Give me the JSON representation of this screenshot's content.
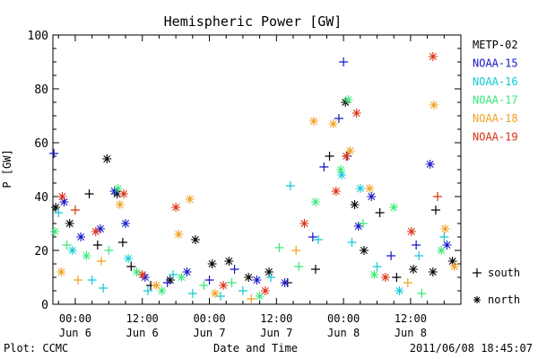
{
  "chart_data": {
    "type": "scatter",
    "title": "Hemispheric Power [GW]",
    "ylabel": "P [GW]",
    "xlabel": "Date and Time",
    "ylim": [
      0,
      100
    ],
    "yticks": [
      0,
      20,
      40,
      60,
      80,
      100
    ],
    "xlim": [
      "2011-06-05 20:00",
      "2011-06-08 21:00"
    ],
    "xticks": [
      {
        "t": "2011-06-06 00:00",
        "label_time": "00:00",
        "label_date": "Jun 6"
      },
      {
        "t": "2011-06-06 12:00",
        "label_time": "12:00",
        "label_date": "Jun 6"
      },
      {
        "t": "2011-06-07 00:00",
        "label_time": "00:00",
        "label_date": "Jun 7"
      },
      {
        "t": "2011-06-07 12:00",
        "label_time": "12:00",
        "label_date": "Jun 7"
      },
      {
        "t": "2011-06-08 00:00",
        "label_time": "00:00",
        "label_date": "Jun 8"
      },
      {
        "t": "2011-06-08 12:00",
        "label_time": "12:00",
        "label_date": "Jun 8"
      }
    ],
    "grid": false,
    "legend_position": "right",
    "marker_legend": [
      {
        "marker": "+",
        "label": "south"
      },
      {
        "marker": "*",
        "label": "north"
      }
    ],
    "series": [
      {
        "name": "METP-02",
        "color": "#000000",
        "points": [
          [
            "2011-06-05 20:30",
            36,
            "*"
          ],
          [
            "2011-06-05 23:00",
            30,
            "*"
          ],
          [
            "2011-06-06 02:30",
            41,
            "+"
          ],
          [
            "2011-06-06 04:00",
            22,
            "+"
          ],
          [
            "2011-06-06 05:40",
            54,
            "*"
          ],
          [
            "2011-06-06 07:30",
            41,
            "*"
          ],
          [
            "2011-06-06 08:30",
            23,
            "+"
          ],
          [
            "2011-06-06 10:00",
            14,
            "+"
          ],
          [
            "2011-06-06 13:30",
            7,
            "+"
          ],
          [
            "2011-06-06 17:00",
            9,
            "*"
          ],
          [
            "2011-06-06 21:30",
            24,
            "*"
          ],
          [
            "2011-06-07 00:30",
            15,
            "*"
          ],
          [
            "2011-06-07 03:30",
            16,
            "*"
          ],
          [
            "2011-06-07 07:00",
            10,
            "*"
          ],
          [
            "2011-06-07 10:40",
            12,
            "*"
          ],
          [
            "2011-06-07 14:00",
            8,
            "+"
          ],
          [
            "2011-06-07 19:00",
            13,
            "+"
          ],
          [
            "2011-06-07 21:30",
            55,
            "+"
          ],
          [
            "2011-06-08 00:20",
            75,
            "*"
          ],
          [
            "2011-06-08 02:00",
            37,
            "*"
          ],
          [
            "2011-06-08 03:40",
            20,
            "*"
          ],
          [
            "2011-06-08 06:30",
            34,
            "+"
          ],
          [
            "2011-06-08 09:30",
            10,
            "+"
          ],
          [
            "2011-06-08 12:30",
            13,
            "*"
          ],
          [
            "2011-06-08 16:00",
            12,
            "*"
          ],
          [
            "2011-06-08 16:30",
            35,
            "+"
          ],
          [
            "2011-06-08 19:30",
            16,
            "*"
          ]
        ]
      },
      {
        "name": "NOAA-15",
        "color": "#1515c8",
        "points": [
          [
            "2011-06-05 20:10",
            56,
            "+"
          ],
          [
            "2011-06-05 22:00",
            38,
            "*"
          ],
          [
            "2011-06-06 01:00",
            25,
            "*"
          ],
          [
            "2011-06-06 04:30",
            28,
            "*"
          ],
          [
            "2011-06-06 07:00",
            42,
            "*"
          ],
          [
            "2011-06-06 09:00",
            30,
            "*"
          ],
          [
            "2011-06-06 12:30",
            10,
            "*"
          ],
          [
            "2011-06-06 16:30",
            8,
            "+"
          ],
          [
            "2011-06-06 20:00",
            12,
            "*"
          ],
          [
            "2011-06-07 00:00",
            9,
            "+"
          ],
          [
            "2011-06-07 04:30",
            13,
            "+"
          ],
          [
            "2011-06-07 08:30",
            9,
            "*"
          ],
          [
            "2011-06-07 13:30",
            8,
            "*"
          ],
          [
            "2011-06-07 18:30",
            25,
            "+"
          ],
          [
            "2011-06-07 20:30",
            51,
            "+"
          ],
          [
            "2011-06-07 23:10",
            69,
            "+"
          ],
          [
            "2011-06-08 00:00",
            90,
            "+"
          ],
          [
            "2011-06-08 00:40",
            55,
            "+"
          ],
          [
            "2011-06-08 02:40",
            29,
            "*"
          ],
          [
            "2011-06-08 05:00",
            40,
            "*"
          ],
          [
            "2011-06-08 08:30",
            18,
            "+"
          ],
          [
            "2011-06-08 13:00",
            22,
            "+"
          ],
          [
            "2011-06-08 15:30",
            52,
            "*"
          ],
          [
            "2011-06-08 18:30",
            22,
            "*"
          ]
        ]
      },
      {
        "name": "NOAA-16",
        "color": "#10c8d8",
        "points": [
          [
            "2011-06-05 21:00",
            34,
            "+"
          ],
          [
            "2011-06-05 23:30",
            20,
            "*"
          ],
          [
            "2011-06-06 03:00",
            9,
            "+"
          ],
          [
            "2011-06-06 05:00",
            6,
            "+"
          ],
          [
            "2011-06-06 09:30",
            17,
            "*"
          ],
          [
            "2011-06-06 13:00",
            5,
            "+"
          ],
          [
            "2011-06-06 17:30",
            11,
            "+"
          ],
          [
            "2011-06-06 21:00",
            4,
            "+"
          ],
          [
            "2011-06-07 02:00",
            3,
            "+"
          ],
          [
            "2011-06-07 06:00",
            5,
            "+"
          ],
          [
            "2011-06-07 11:00",
            10,
            "+"
          ],
          [
            "2011-06-07 14:30",
            44,
            "+"
          ],
          [
            "2011-06-07 19:30",
            24,
            "+"
          ],
          [
            "2011-06-07 23:40",
            48,
            "*"
          ],
          [
            "2011-06-08 01:30",
            23,
            "+"
          ],
          [
            "2011-06-08 03:00",
            43,
            "*"
          ],
          [
            "2011-06-08 06:00",
            14,
            "+"
          ],
          [
            "2011-06-08 10:00",
            5,
            "*"
          ],
          [
            "2011-06-08 13:30",
            18,
            "+"
          ],
          [
            "2011-06-08 18:00",
            25,
            "+"
          ]
        ]
      },
      {
        "name": "NOAA-17",
        "color": "#38e878",
        "points": [
          [
            "2011-06-05 20:20",
            27,
            "*"
          ],
          [
            "2011-06-05 22:30",
            22,
            "+"
          ],
          [
            "2011-06-06 02:00",
            18,
            "*"
          ],
          [
            "2011-06-06 06:00",
            20,
            "+"
          ],
          [
            "2011-06-06 07:40",
            43,
            "*"
          ],
          [
            "2011-06-06 11:00",
            12,
            "*"
          ],
          [
            "2011-06-06 15:30",
            5,
            "*"
          ],
          [
            "2011-06-06 19:00",
            10,
            "*"
          ],
          [
            "2011-06-06 23:00",
            7,
            "+"
          ],
          [
            "2011-06-07 04:00",
            8,
            "+"
          ],
          [
            "2011-06-07 09:00",
            3,
            "*"
          ],
          [
            "2011-06-07 12:30",
            21,
            "+"
          ],
          [
            "2011-06-07 16:00",
            14,
            "+"
          ],
          [
            "2011-06-07 19:00",
            38,
            "*"
          ],
          [
            "2011-06-07 23:30",
            50,
            "*"
          ],
          [
            "2011-06-08 00:50",
            76,
            "*"
          ],
          [
            "2011-06-08 03:30",
            30,
            "+"
          ],
          [
            "2011-06-08 05:30",
            11,
            "*"
          ],
          [
            "2011-06-08 09:00",
            36,
            "*"
          ],
          [
            "2011-06-08 14:00",
            4,
            "+"
          ],
          [
            "2011-06-08 17:30",
            20,
            "*"
          ]
        ]
      },
      {
        "name": "NOAA-18",
        "color": "#f0a020",
        "points": [
          [
            "2011-06-05 21:30",
            12,
            "*"
          ],
          [
            "2011-06-06 00:30",
            9,
            "+"
          ],
          [
            "2011-06-06 04:40",
            16,
            "+"
          ],
          [
            "2011-06-06 08:00",
            37,
            "*"
          ],
          [
            "2011-06-06 14:30",
            7,
            "*"
          ],
          [
            "2011-06-06 18:30",
            26,
            "*"
          ],
          [
            "2011-06-06 20:30",
            39,
            "*"
          ],
          [
            "2011-06-07 01:00",
            4,
            "*"
          ],
          [
            "2011-06-07 07:30",
            2,
            "+"
          ],
          [
            "2011-06-07 15:30",
            20,
            "+"
          ],
          [
            "2011-06-07 18:40",
            68,
            "*"
          ],
          [
            "2011-06-07 22:10",
            67,
            "*"
          ],
          [
            "2011-06-08 01:10",
            57,
            "*"
          ],
          [
            "2011-06-08 04:40",
            43,
            "*"
          ],
          [
            "2011-06-08 11:30",
            8,
            "+"
          ],
          [
            "2011-06-08 16:10",
            74,
            "*"
          ],
          [
            "2011-06-08 18:10",
            28,
            "*"
          ],
          [
            "2011-06-08 19:50",
            14,
            "*"
          ]
        ]
      },
      {
        "name": "NOAA-19",
        "color": "#d83010",
        "points": [
          [
            "2011-06-05 21:40",
            40,
            "*"
          ],
          [
            "2011-06-06 00:00",
            35,
            "+"
          ],
          [
            "2011-06-06 03:40",
            27,
            "*"
          ],
          [
            "2011-06-06 08:40",
            41,
            "*"
          ],
          [
            "2011-06-06 12:00",
            11,
            "*"
          ],
          [
            "2011-06-06 18:00",
            36,
            "*"
          ],
          [
            "2011-06-07 02:30",
            7,
            "*"
          ],
          [
            "2011-06-07 10:00",
            5,
            "*"
          ],
          [
            "2011-06-07 17:00",
            30,
            "*"
          ],
          [
            "2011-06-07 22:40",
            42,
            "*"
          ],
          [
            "2011-06-08 00:30",
            55,
            "*"
          ],
          [
            "2011-06-08 02:20",
            71,
            "*"
          ],
          [
            "2011-06-08 07:30",
            10,
            "*"
          ],
          [
            "2011-06-08 12:10",
            27,
            "*"
          ],
          [
            "2011-06-08 16:00",
            92,
            "*"
          ],
          [
            "2011-06-08 16:50",
            40,
            "+"
          ]
        ]
      }
    ]
  },
  "footer": {
    "left": "Plot: CCMC",
    "right": "2011/06/08 18:45:07"
  }
}
